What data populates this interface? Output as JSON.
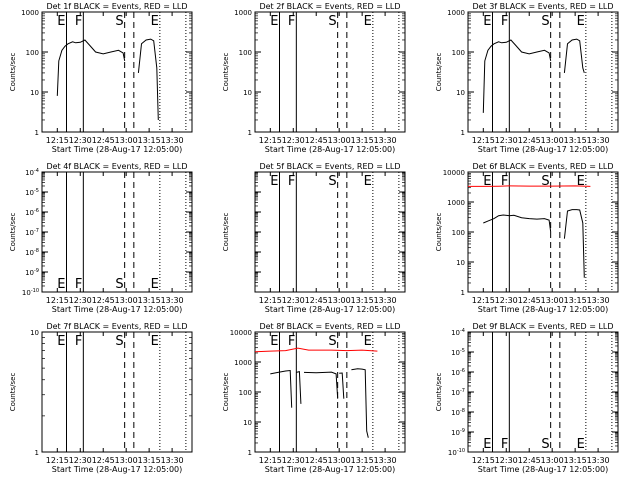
{
  "figure": {
    "ylabel": "Counts/sec",
    "xlabel": "Start Time (28-Aug-17 12:05:00)",
    "x_tick_labels": [
      "12:15",
      "12:30",
      "12:45",
      "13:00",
      "13:15",
      "13:30"
    ],
    "colors": {
      "events": "#000000",
      "lld": "#ff0000",
      "background": "#ffffff"
    }
  },
  "chart_data": [
    {
      "type": "line",
      "title": "Det 1f BLACK = Events, RED = LLD",
      "xlabel": "Start Time (28-Aug-17 12:05:00)",
      "ylabel": "Counts/sec",
      "xlim": [
        "12:05",
        "13:43"
      ],
      "yscale": "log",
      "ylim": [
        1,
        1000
      ],
      "y_tick_labels": [
        "1",
        "10",
        "100",
        "1000"
      ],
      "markers": [
        {
          "x": "12:21",
          "label": "E",
          "style": "solid"
        },
        {
          "x": "12:32",
          "label": "F",
          "style": "solid"
        },
        {
          "x": "12:59",
          "label": "S",
          "style": "dashed"
        },
        {
          "x": "13:05",
          "label": "",
          "style": "dashed"
        },
        {
          "x": "13:22",
          "label": "E",
          "style": "dotted"
        },
        {
          "x": "13:39",
          "label": "",
          "style": "dotted"
        }
      ],
      "series": [
        {
          "role": "events",
          "segments": [
            [
              [
                "12:15",
                8
              ],
              [
                "12:16",
                60
              ],
              [
                "12:18",
                110
              ],
              [
                "12:20",
                140
              ],
              [
                "12:22",
                160
              ],
              [
                "12:25",
                180
              ],
              [
                "12:27",
                170
              ],
              [
                "12:30",
                175
              ],
              [
                "12:33",
                200
              ],
              [
                "12:36",
                150
              ],
              [
                "12:40",
                100
              ],
              [
                "12:45",
                90
              ],
              [
                "12:50",
                100
              ],
              [
                "12:55",
                110
              ],
              [
                "12:58",
                95
              ],
              [
                "12:59",
                60
              ]
            ],
            [
              [
                "13:08",
                30
              ],
              [
                "13:10",
                160
              ],
              [
                "13:13",
                200
              ],
              [
                "13:16",
                210
              ],
              [
                "13:18",
                190
              ],
              [
                "13:20",
                40
              ],
              [
                "13:21",
                2
              ]
            ]
          ]
        }
      ]
    },
    {
      "type": "line",
      "title": "Det 2f BLACK = Events, RED = LLD",
      "xlabel": "Start Time (28-Aug-17 12:05:00)",
      "ylabel": "Counts/sec",
      "xlim": [
        "12:05",
        "13:43"
      ],
      "yscale": "log",
      "ylim": [
        1,
        1000
      ],
      "y_tick_labels": [
        "1",
        "10",
        "100",
        "1000"
      ],
      "markers": [
        {
          "x": "12:21",
          "label": "E",
          "style": "solid"
        },
        {
          "x": "12:32",
          "label": "F",
          "style": "solid"
        },
        {
          "x": "12:59",
          "label": "S",
          "style": "dashed"
        },
        {
          "x": "13:05",
          "label": "",
          "style": "dashed"
        },
        {
          "x": "13:22",
          "label": "E",
          "style": "dotted"
        },
        {
          "x": "13:39",
          "label": "",
          "style": "dotted"
        }
      ],
      "series": []
    },
    {
      "type": "line",
      "title": "Det 3f BLACK = Events, RED = LLD",
      "xlabel": "Start Time (28-Aug-17 12:05:00)",
      "ylabel": "Counts/sec",
      "xlim": [
        "12:05",
        "13:43"
      ],
      "yscale": "log",
      "ylim": [
        1,
        1000
      ],
      "y_tick_labels": [
        "1",
        "10",
        "100",
        "1000"
      ],
      "markers": [
        {
          "x": "12:21",
          "label": "E",
          "style": "solid"
        },
        {
          "x": "12:32",
          "label": "F",
          "style": "solid"
        },
        {
          "x": "12:59",
          "label": "S",
          "style": "dashed"
        },
        {
          "x": "13:05",
          "label": "",
          "style": "dashed"
        },
        {
          "x": "13:22",
          "label": "E",
          "style": "dotted"
        },
        {
          "x": "13:39",
          "label": "",
          "style": "dotted"
        }
      ],
      "series": [
        {
          "role": "events",
          "segments": [
            [
              [
                "12:15",
                3
              ],
              [
                "12:16",
                60
              ],
              [
                "12:18",
                110
              ],
              [
                "12:20",
                140
              ],
              [
                "12:22",
                160
              ],
              [
                "12:25",
                180
              ],
              [
                "12:27",
                170
              ],
              [
                "12:30",
                175
              ],
              [
                "12:33",
                200
              ],
              [
                "12:36",
                150
              ],
              [
                "12:40",
                100
              ],
              [
                "12:45",
                90
              ],
              [
                "12:50",
                100
              ],
              [
                "12:55",
                110
              ],
              [
                "12:58",
                95
              ],
              [
                "12:59",
                60
              ]
            ],
            [
              [
                "13:08",
                30
              ],
              [
                "13:10",
                160
              ],
              [
                "13:13",
                200
              ],
              [
                "13:16",
                210
              ],
              [
                "13:18",
                190
              ],
              [
                "13:20",
                40
              ],
              [
                "13:21",
                30
              ]
            ]
          ]
        }
      ]
    },
    {
      "type": "line",
      "title": "Det 4f BLACK = Events, RED = LLD",
      "xlabel": "Start Time (28-Aug-17 12:05:00)",
      "ylabel": "Counts/sec",
      "xlim": [
        "12:05",
        "13:43"
      ],
      "yscale": "log",
      "ylim": [
        1e-10,
        0.0001
      ],
      "y_tick_labels": [
        "10^-10",
        "10^-9",
        "10^-8",
        "10^-7",
        "10^-6",
        "10^-5",
        "10^-4"
      ],
      "markers": [
        {
          "x": "12:21",
          "label": "E",
          "style": "solid"
        },
        {
          "x": "12:32",
          "label": "F",
          "style": "solid"
        },
        {
          "x": "12:59",
          "label": "S",
          "style": "dashed"
        },
        {
          "x": "13:05",
          "label": "",
          "style": "dashed"
        },
        {
          "x": "13:22",
          "label": "E",
          "style": "dotted"
        },
        {
          "x": "13:39",
          "label": "",
          "style": "dotted"
        }
      ],
      "series": []
    },
    {
      "type": "line",
      "title": "Det 5f BLACK = Events, RED = LLD",
      "xlabel": "Start Time (28-Aug-17 12:05:00)",
      "ylabel": "Counts/sec",
      "xlim": [
        "12:05",
        "13:43"
      ],
      "yscale": "log",
      "ylim": [
        1e-10,
        0.0001
      ],
      "y_tick_labels": [],
      "markers": [
        {
          "x": "12:21",
          "label": "E",
          "style": "solid"
        },
        {
          "x": "12:32",
          "label": "F",
          "style": "solid"
        },
        {
          "x": "12:59",
          "label": "S",
          "style": "dashed"
        },
        {
          "x": "13:05",
          "label": "",
          "style": "dashed"
        },
        {
          "x": "13:22",
          "label": "E",
          "style": "dotted"
        },
        {
          "x": "13:39",
          "label": "",
          "style": "dotted"
        }
      ],
      "series": []
    },
    {
      "type": "line",
      "title": "Det 6f BLACK = Events, RED = LLD",
      "xlabel": "Start Time (28-Aug-17 12:05:00)",
      "ylabel": "Counts/sec",
      "xlim": [
        "12:05",
        "13:43"
      ],
      "yscale": "log",
      "ylim": [
        1,
        10000
      ],
      "y_tick_labels": [
        "1",
        "10",
        "100",
        "1000",
        "10000"
      ],
      "markers": [
        {
          "x": "12:21",
          "label": "E",
          "style": "solid"
        },
        {
          "x": "12:32",
          "label": "F",
          "style": "solid"
        },
        {
          "x": "12:59",
          "label": "S",
          "style": "dashed"
        },
        {
          "x": "13:05",
          "label": "",
          "style": "dashed"
        },
        {
          "x": "13:22",
          "label": "E",
          "style": "dotted"
        },
        {
          "x": "13:39",
          "label": "",
          "style": "dotted"
        }
      ],
      "series": [
        {
          "role": "lld",
          "segments": [
            [
              [
                "12:05",
                3300
              ],
              [
                "12:15",
                3300
              ],
              [
                "12:25",
                3350
              ],
              [
                "12:32",
                3450
              ],
              [
                "12:45",
                3400
              ],
              [
                "13:00",
                3400
              ],
              [
                "13:15",
                3450
              ],
              [
                "13:25",
                3300
              ]
            ]
          ]
        },
        {
          "role": "events",
          "segments": [
            [
              [
                "12:15",
                200
              ],
              [
                "12:18",
                230
              ],
              [
                "12:22",
                280
              ],
              [
                "12:25",
                350
              ],
              [
                "12:28",
                370
              ],
              [
                "12:32",
                350
              ],
              [
                "12:35",
                360
              ],
              [
                "12:40",
                300
              ],
              [
                "12:45",
                280
              ],
              [
                "12:50",
                270
              ],
              [
                "12:55",
                280
              ],
              [
                "12:58",
                250
              ],
              [
                "12:59",
                100
              ]
            ],
            [
              [
                "13:08",
                60
              ],
              [
                "13:10",
                500
              ],
              [
                "13:13",
                560
              ],
              [
                "13:16",
                560
              ],
              [
                "13:18",
                540
              ],
              [
                "13:20",
                200
              ],
              [
                "13:21",
                3
              ]
            ]
          ]
        }
      ]
    },
    {
      "type": "line",
      "title": "Det 7f BLACK = Events, RED = LLD",
      "xlabel": "Start Time (28-Aug-17 12:05:00)",
      "ylabel": "Counts/sec",
      "xlim": [
        "12:05",
        "13:43"
      ],
      "yscale": "log",
      "ylim": [
        1,
        10
      ],
      "y_tick_labels": [
        "1",
        "10"
      ],
      "markers": [
        {
          "x": "12:21",
          "label": "E",
          "style": "solid"
        },
        {
          "x": "12:32",
          "label": "F",
          "style": "solid"
        },
        {
          "x": "12:59",
          "label": "S",
          "style": "dashed"
        },
        {
          "x": "13:05",
          "label": "",
          "style": "dashed"
        },
        {
          "x": "13:22",
          "label": "E",
          "style": "dotted"
        },
        {
          "x": "13:39",
          "label": "",
          "style": "dotted"
        }
      ],
      "series": []
    },
    {
      "type": "line",
      "title": "Det 8f BLACK = Events, RED = LLD",
      "xlabel": "Start Time (28-Aug-17 12:05:00)",
      "ylabel": "Counts/sec",
      "xlim": [
        "12:05",
        "13:43"
      ],
      "yscale": "log",
      "ylim": [
        1,
        10000
      ],
      "y_tick_labels": [
        "1",
        "10",
        "100",
        "1000",
        "10000"
      ],
      "markers": [
        {
          "x": "12:21",
          "label": "E",
          "style": "solid"
        },
        {
          "x": "12:32",
          "label": "F",
          "style": "solid"
        },
        {
          "x": "12:59",
          "label": "S",
          "style": "dashed"
        },
        {
          "x": "13:05",
          "label": "",
          "style": "dashed"
        },
        {
          "x": "13:22",
          "label": "E",
          "style": "dotted"
        },
        {
          "x": "13:39",
          "label": "",
          "style": "dotted"
        }
      ],
      "series": [
        {
          "role": "lld",
          "segments": [
            [
              [
                "12:05",
                2200
              ],
              [
                "12:15",
                2300
              ],
              [
                "12:25",
                2400
              ],
              [
                "12:33",
                2900
              ],
              [
                "12:40",
                2500
              ],
              [
                "12:55",
                2500
              ],
              [
                "13:05",
                2400
              ],
              [
                "13:15",
                2500
              ],
              [
                "13:25",
                2300
              ]
            ]
          ]
        },
        {
          "role": "events",
          "segments": [
            [
              [
                "12:15",
                400
              ],
              [
                "12:20",
                450
              ],
              [
                "12:25",
                500
              ],
              [
                "12:28",
                520
              ],
              [
                "12:29",
                30
              ]
            ],
            [
              [
                "12:32",
                450
              ],
              [
                "12:34",
                480
              ],
              [
                "12:35",
                40
              ]
            ],
            [
              [
                "12:37",
                450
              ],
              [
                "12:45",
                440
              ],
              [
                "12:55",
                460
              ],
              [
                "12:58",
                400
              ],
              [
                "12:59",
                60
              ]
            ],
            [
              [
                "13:00",
                420
              ],
              [
                "13:02",
                430
              ],
              [
                "13:03",
                60
              ]
            ],
            [
              [
                "13:08",
                550
              ],
              [
                "13:12",
                600
              ],
              [
                "13:15",
                580
              ],
              [
                "13:17",
                550
              ],
              [
                "13:18",
                5
              ],
              [
                "13:19",
                3
              ]
            ]
          ]
        }
      ]
    },
    {
      "type": "line",
      "title": "Det 9f BLACK = Events, RED = LLD",
      "xlabel": "Start Time (28-Aug-17 12:05:00)",
      "ylabel": "Counts/sec",
      "xlim": [
        "12:05",
        "13:43"
      ],
      "yscale": "log",
      "ylim": [
        1e-10,
        0.0001
      ],
      "y_tick_labels": [
        "10^-10",
        "10^-9",
        "10^-8",
        "10^-7",
        "10^-6",
        "10^-5",
        "10^-4"
      ],
      "markers": [
        {
          "x": "12:21",
          "label": "E",
          "style": "solid"
        },
        {
          "x": "12:32",
          "label": "F",
          "style": "solid"
        },
        {
          "x": "12:59",
          "label": "S",
          "style": "dashed"
        },
        {
          "x": "13:05",
          "label": "",
          "style": "dashed"
        },
        {
          "x": "13:22",
          "label": "E",
          "style": "dotted"
        },
        {
          "x": "13:39",
          "label": "",
          "style": "dotted"
        }
      ],
      "series": []
    }
  ]
}
